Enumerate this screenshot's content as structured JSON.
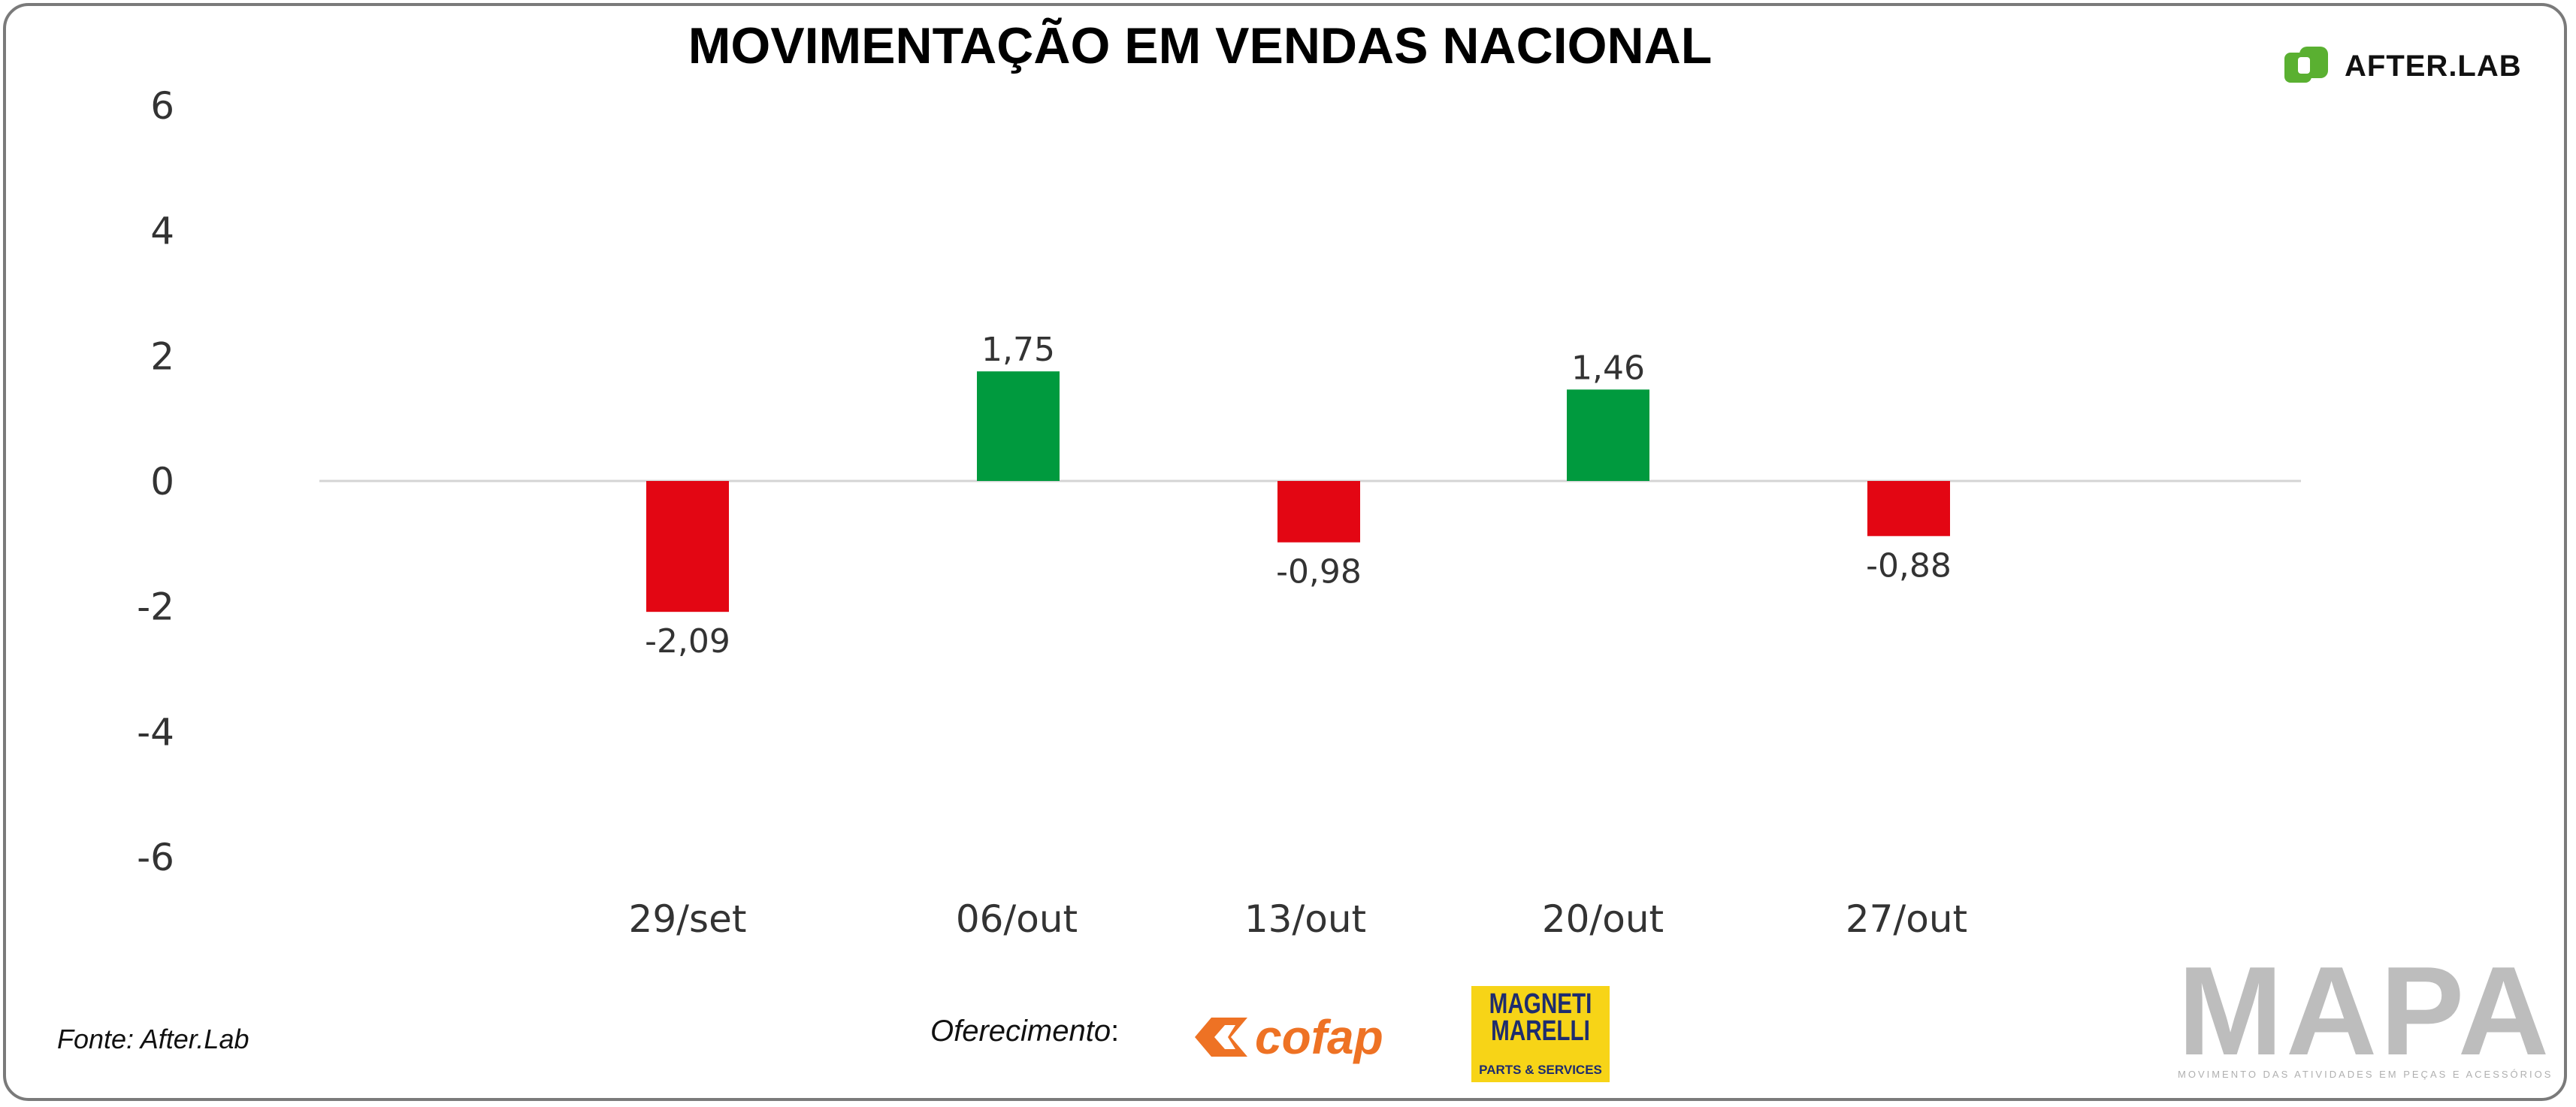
{
  "title": "MOVIMENTAÇÃO EM VENDAS NACIONAL",
  "brand": {
    "name": "AFTER.LAB",
    "color": "#5ab031",
    "icon": "afterlab-logo-icon"
  },
  "source": "Fonte: After.Lab",
  "sponsor": {
    "label": "Oferecimento",
    "label_suffix": ":",
    "cofap": "cofap",
    "cofap_color": "#ee7224",
    "magneti_top": "MAGNETI MARELLI",
    "magneti_bottom": "PARTS & SERVICES",
    "magneti_bg": "#f7d417"
  },
  "mapa": {
    "word": "MAPA",
    "subtitle": "MOVIMENTO DAS ATIVIDADES EM PEÇAS E ACESSÓRIOS"
  },
  "chart_data": {
    "type": "bar",
    "categories": [
      "29/set",
      "06/out",
      "13/out",
      "20/out",
      "27/out"
    ],
    "values": [
      -2.09,
      1.75,
      -0.98,
      1.46,
      -0.88
    ],
    "value_labels": [
      "-2,09",
      "1,75",
      "-0,98",
      "1,46",
      "-0,88"
    ],
    "colors": [
      "#e30613",
      "#009a3e",
      "#e30613",
      "#009a3e",
      "#e30613"
    ],
    "positive_color": "#009a3e",
    "negative_color": "#e30613",
    "ylim": [
      -6,
      6
    ],
    "yticks": [
      6,
      4,
      2,
      0,
      -2,
      -4,
      -6
    ],
    "title": "MOVIMENTAÇÃO EM VENDAS NACIONAL",
    "xlabel": "",
    "ylabel": "",
    "grid": false,
    "legend": "none"
  }
}
